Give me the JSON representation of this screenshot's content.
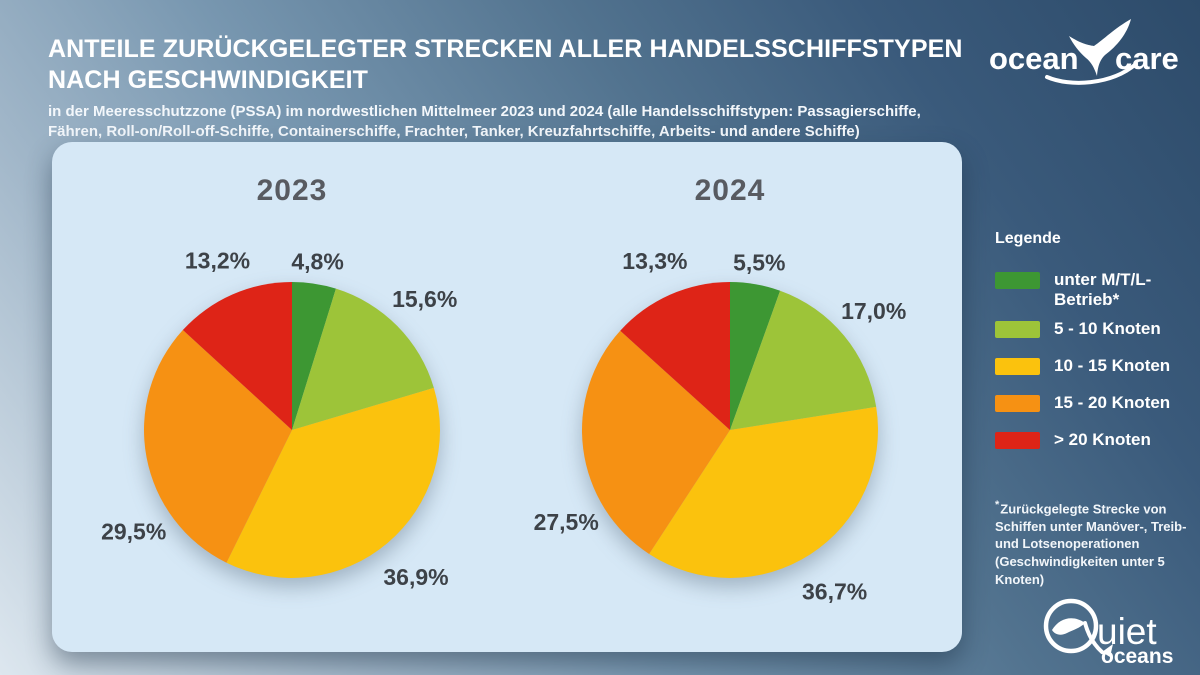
{
  "header": {
    "title_line1": "ANTEILE ZURÜCKGELEGTER STRECKEN ALLER HANDELSSCHIFFSTYPEN",
    "title_line2": "NACH GESCHWINDIGKEIT",
    "subtitle": "in der Meeresschutzzone (PSSA) im nordwestlichen Mittelmeer 2023 und 2024 (alle Handelsschiffstypen: Passagierschiffe, Fähren, Roll-on/Roll-off-Schiffe, Containerschiffe, Frachter, Tanker, Kreuzfahrtschiffe, Arbeits- und andere Schiffe)"
  },
  "brand": {
    "oceancare": {
      "word1": "ocean",
      "word2": "care"
    },
    "quietoceans": {
      "word1": "uiet",
      "word2": "oceans"
    }
  },
  "legend": {
    "heading": "Legende",
    "items": [
      {
        "label": "unter M/T/L-Betrieb*",
        "color": "#3d9733"
      },
      {
        "label": "5 - 10 Knoten",
        "color": "#9dc439"
      },
      {
        "label": "10 - 15 Knoten",
        "color": "#fbc20d"
      },
      {
        "label": "15 - 20 Knoten",
        "color": "#f69113"
      },
      {
        "label": "> 20 Knoten",
        "color": "#de2417"
      }
    ],
    "footnote_marker": "*",
    "footnote": "Zurückgelegte Strecke von Schiffen unter Manöver-, Treib- und Lotsenoperationen (Geschwindigkeiten unter 5 Knoten)"
  },
  "chart_data": {
    "type": "pie",
    "categories": [
      "unter M/T/L-Betrieb*",
      "5 - 10 Knoten",
      "10 - 15 Knoten",
      "15 - 20 Knoten",
      "> 20 Knoten"
    ],
    "colors": [
      "#3d9733",
      "#9dc439",
      "#fbc20d",
      "#f69113",
      "#de2417"
    ],
    "charts": [
      {
        "title": "2023",
        "values": [
          4.8,
          15.6,
          36.9,
          29.5,
          13.2
        ]
      },
      {
        "title": "2024",
        "values": [
          5.5,
          17.0,
          36.7,
          27.5,
          13.3
        ]
      }
    ],
    "value_format": "percent_german_decimal",
    "start_angle_deg": 0,
    "direction": "clockwise",
    "legend_position": "right"
  }
}
